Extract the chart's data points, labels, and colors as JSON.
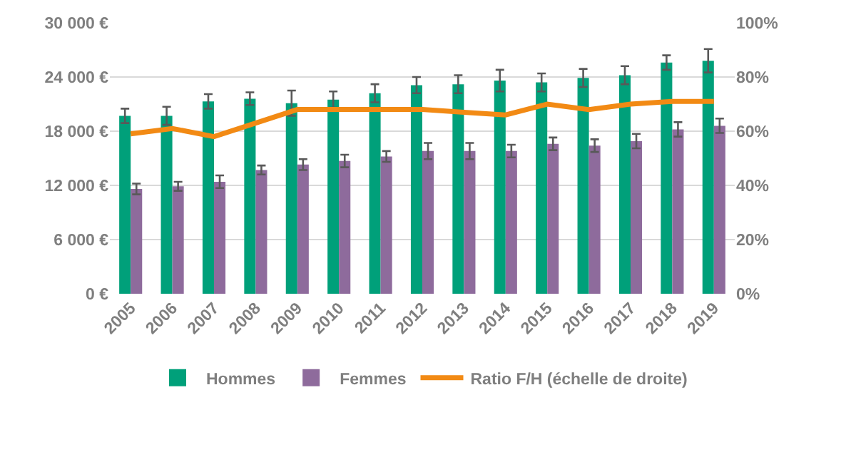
{
  "chart_data": {
    "type": "bar",
    "categories": [
      "2005",
      "2006",
      "2007",
      "2008",
      "2009",
      "2010",
      "2011",
      "2012",
      "2013",
      "2014",
      "2015",
      "2016",
      "2017",
      "2018",
      "2019"
    ],
    "series": [
      {
        "name": "Hommes",
        "color": "#00a07a",
        "values": [
          19700,
          19700,
          21300,
          21600,
          21100,
          21500,
          22200,
          23100,
          23200,
          23600,
          23400,
          23900,
          24200,
          25600,
          25800
        ],
        "errors": [
          800,
          1000,
          800,
          700,
          1400,
          900,
          1000,
          900,
          1000,
          1200,
          1000,
          1000,
          1000,
          800,
          1300
        ]
      },
      {
        "name": "Femmes",
        "color": "#8e6b9c",
        "values": [
          11600,
          11900,
          12400,
          13700,
          14300,
          14700,
          15200,
          15800,
          15800,
          15800,
          16600,
          16400,
          16900,
          18200,
          18600
        ],
        "errors": [
          600,
          500,
          700,
          500,
          600,
          700,
          600,
          900,
          900,
          700,
          700,
          700,
          800,
          800,
          800
        ]
      },
      {
        "name": "Ratio F/H (échelle de droite)",
        "type": "line",
        "axis": "y2",
        "color": "#f28a14",
        "values": [
          59,
          61,
          58,
          63,
          68,
          68,
          68,
          68,
          67,
          66,
          70,
          68,
          70,
          71,
          71
        ]
      }
    ],
    "ylim": [
      0,
      30000
    ],
    "yticks": [
      {
        "value": 0,
        "label": "0 €"
      },
      {
        "value": 6000,
        "label": "6 000 €"
      },
      {
        "value": 12000,
        "label": "12 000 €"
      },
      {
        "value": 18000,
        "label": "18 000 €"
      },
      {
        "value": 24000,
        "label": "24 000 €"
      },
      {
        "value": 30000,
        "label": "30 000 €"
      }
    ],
    "y2lim": [
      0,
      100
    ],
    "y2ticks": [
      {
        "value": 0,
        "label": "0%"
      },
      {
        "value": 20,
        "label": "20%"
      },
      {
        "value": 40,
        "label": "40%"
      },
      {
        "value": 60,
        "label": "60%"
      },
      {
        "value": 80,
        "label": "80%"
      },
      {
        "value": 100,
        "label": "100%"
      }
    ],
    "grid": "y",
    "legend": "bottom",
    "line_style": "solid"
  }
}
